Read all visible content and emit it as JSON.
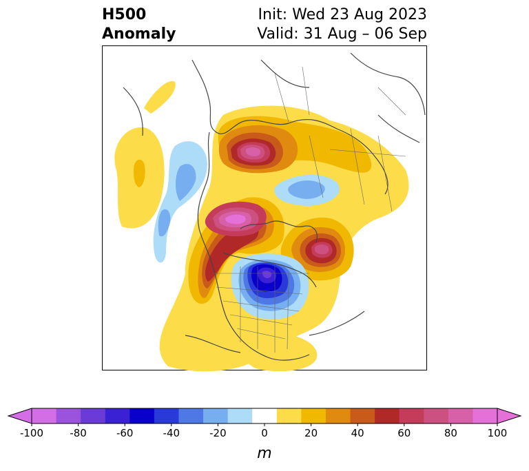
{
  "title": {
    "left_line1": "H500",
    "left_line2": "Anomaly",
    "init": "Init: Wed 23 Aug 2023",
    "valid": "Valid: 31 Aug – 06 Sep"
  },
  "colorbar": {
    "unit": "m",
    "ticks": [
      "-100",
      "-80",
      "-60",
      "-40",
      "-20",
      "0",
      "20",
      "40",
      "60",
      "80",
      "100"
    ],
    "colors": [
      "#d46ee6",
      "#9b52dc",
      "#6a3bd6",
      "#3a22d4",
      "#0a00cc",
      "#2a3ad8",
      "#4e78e4",
      "#76aef0",
      "#acdcf8",
      "#ffffff",
      "#fcdc48",
      "#f0b800",
      "#e08a10",
      "#c85a1a",
      "#b02828",
      "#c43c5a",
      "#cc5080",
      "#d860a8",
      "#e470d8"
    ],
    "extend_low": "#d46ee6",
    "extend_high": "#e470d8"
  }
}
